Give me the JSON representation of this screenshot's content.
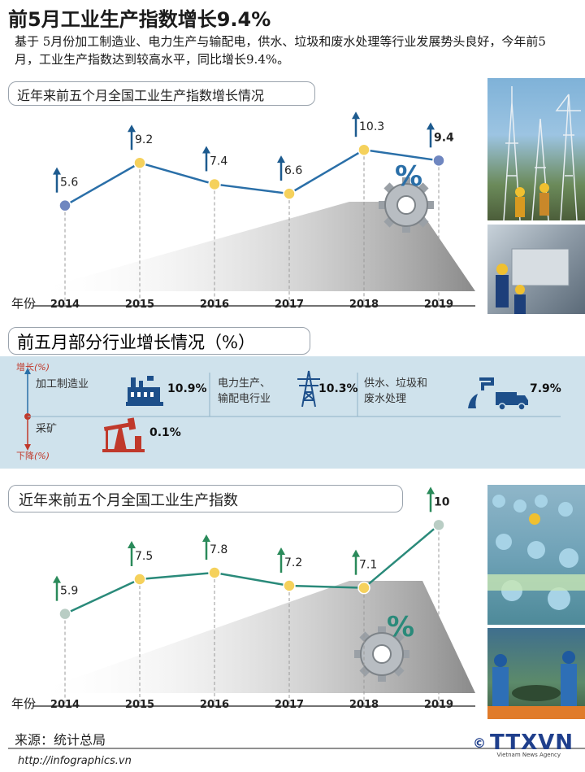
{
  "header": {
    "title": "前5月工业生产指数增长9.4%",
    "intro": "基于 5月份加工制造业、电力生产与输配电，供水、垃圾和废水处理等行业发展势头良好，今年前5月，工业生产指数达到较高水平，同比增长9.4%。"
  },
  "chart1_label": "近年来前五个月全国工业生产指数增长情况",
  "chart2_label": "近年来前五个月全国工业生产指数",
  "section2_title": "前五月部分行业增长情况（%）",
  "axis": {
    "up": "增长",
    "up_unit": "(%)",
    "down": "下降",
    "down_unit": "(%)",
    "year_label": "年份"
  },
  "industries": [
    {
      "name": "加工制造业",
      "value": "10.9%",
      "icon": "factory-icon"
    },
    {
      "name": "电力生产、\n输配电行业",
      "value": "10.3%",
      "icon": "power-tower-icon"
    },
    {
      "name": "供水、垃圾和\n废水处理",
      "value": "7.9%",
      "icon": "water-truck-icon"
    },
    {
      "name": "采矿",
      "value": "0.1%",
      "icon": "oil-pump-icon"
    }
  ],
  "chart_data": [
    {
      "type": "line",
      "title": "近年来前五个月全国工业生产指数增长情况",
      "xlabel": "年份",
      "x": [
        "2014",
        "2015",
        "2016",
        "2017",
        "2018",
        "2019"
      ],
      "values": [
        5.6,
        9.2,
        7.4,
        6.6,
        10.3,
        9.4
      ],
      "labels": [
        "5.6",
        "9.2",
        "7.4",
        "6.6",
        "10.3",
        "9.4"
      ],
      "ylim": [
        4,
        11
      ],
      "line_color": "#2a6fa8",
      "point_colors": [
        "#6f86c0",
        "#f5d15c",
        "#f5d15c",
        "#f5d15c",
        "#f5d15c",
        "#6f86c0"
      ]
    },
    {
      "type": "line",
      "title": "近年来前五个月全国工业生产指数",
      "xlabel": "年份",
      "x": [
        "2014",
        "2015",
        "2016",
        "2017",
        "2018",
        "2019"
      ],
      "values": [
        5.9,
        7.5,
        7.8,
        7.2,
        7.1,
        10
      ],
      "labels": [
        "5.9",
        "7.5",
        "7.8",
        "7.2",
        "7.1",
        "10"
      ],
      "ylim": [
        4.5,
        10.5
      ],
      "line_color": "#2a8a7a",
      "point_colors": [
        "#b9cdc4",
        "#f5d15c",
        "#f5d15c",
        "#f5d15c",
        "#f5d15c",
        "#b9cdc4"
      ]
    }
  ],
  "footer": {
    "source": "来源：统计总局",
    "url": "http://infographics.vn",
    "logo": "TTXVN",
    "logo_sub": "Vietnam News Agency"
  }
}
